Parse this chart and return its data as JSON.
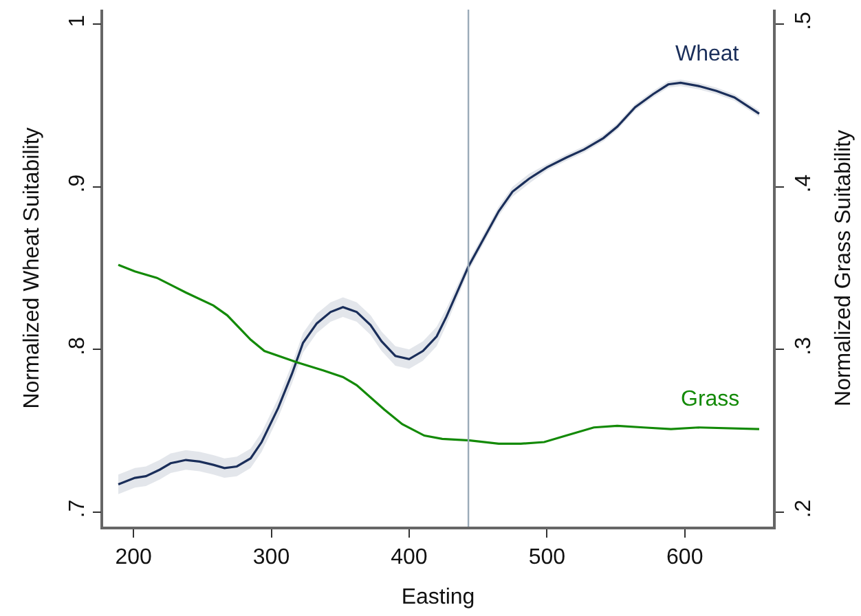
{
  "chart_data": {
    "type": "line",
    "xlabel": "Easting",
    "ylabel": "Normalized Wheat Suitability",
    "y2label": "Normalized Grass Suitability",
    "xlim": [
      178,
      664
    ],
    "xticks": [
      200,
      300,
      400,
      500,
      600
    ],
    "ylim": [
      0.691,
      1.009
    ],
    "yticks": [
      {
        "value": 0.7,
        "label": ".7"
      },
      {
        "value": 0.8,
        "label": ".8"
      },
      {
        "value": 0.9,
        "label": ".9"
      },
      {
        "value": 1,
        "label": "1"
      }
    ],
    "y2lim": [
      0.191,
      0.509
    ],
    "y2ticks": [
      {
        "value": 0.2,
        "label": ".2"
      },
      {
        "value": 0.3,
        "label": ".3"
      },
      {
        "value": 0.4,
        "label": ".4"
      },
      {
        "value": 0.5,
        "label": ".5"
      }
    ],
    "legend": false,
    "marker": "none",
    "line_style": "solid",
    "ref_lines": [
      {
        "axis": "x",
        "value": 443,
        "color": "#9aaab8"
      }
    ],
    "series": [
      {
        "name": "Wheat",
        "color": "#1a2e5a",
        "x": [
          189,
          201,
          209,
          219,
          227,
          238,
          248,
          258,
          266,
          275,
          285,
          293,
          305,
          315,
          323,
          333,
          343,
          352,
          362,
          372,
          380,
          390,
          400,
          410,
          420,
          427,
          443,
          454,
          465,
          475,
          487,
          500,
          514,
          527,
          541,
          551,
          564,
          577,
          588,
          597,
          610,
          623,
          636,
          654
        ],
        "values": [
          0.717,
          0.721,
          0.722,
          0.726,
          0.73,
          0.732,
          0.731,
          0.729,
          0.727,
          0.728,
          0.733,
          0.743,
          0.764,
          0.785,
          0.804,
          0.816,
          0.823,
          0.826,
          0.823,
          0.815,
          0.805,
          0.796,
          0.794,
          0.799,
          0.808,
          0.82,
          0.851,
          0.868,
          0.885,
          0.897,
          0.905,
          0.912,
          0.918,
          0.923,
          0.93,
          0.937,
          0.949,
          0.957,
          0.963,
          0.964,
          0.962,
          0.959,
          0.955,
          0.945
        ],
        "lower": [
          0.711,
          0.715,
          0.716,
          0.72,
          0.724,
          0.726,
          0.725,
          0.723,
          0.721,
          0.722,
          0.727,
          0.737,
          0.758,
          0.779,
          0.798,
          0.81,
          0.817,
          0.82,
          0.817,
          0.809,
          0.799,
          0.79,
          0.788,
          0.793,
          0.802,
          0.815,
          0.848,
          0.865,
          0.882,
          0.894,
          0.902,
          0.91,
          0.916,
          0.921,
          0.928,
          0.935,
          0.947,
          0.955,
          0.961,
          0.962,
          0.96,
          0.957,
          0.953,
          0.943
        ],
        "upper": [
          0.723,
          0.727,
          0.728,
          0.732,
          0.736,
          0.738,
          0.737,
          0.735,
          0.733,
          0.734,
          0.739,
          0.749,
          0.77,
          0.791,
          0.81,
          0.822,
          0.829,
          0.832,
          0.829,
          0.821,
          0.811,
          0.802,
          0.8,
          0.805,
          0.814,
          0.825,
          0.854,
          0.871,
          0.888,
          0.9,
          0.908,
          0.914,
          0.92,
          0.925,
          0.932,
          0.939,
          0.951,
          0.959,
          0.965,
          0.966,
          0.964,
          0.961,
          0.957,
          0.947
        ]
      },
      {
        "name": "Grass",
        "color": "#138a07",
        "axis": "y2",
        "x": [
          189,
          201,
          217,
          238,
          258,
          268,
          285,
          295,
          319,
          338,
          352,
          362,
          382,
          395,
          411,
          424,
          444,
          465,
          481,
          498,
          514,
          534,
          551,
          570,
          590,
          610,
          654
        ],
        "values": [
          0.352,
          0.348,
          0.344,
          0.335,
          0.327,
          0.321,
          0.306,
          0.299,
          0.292,
          0.287,
          0.283,
          0.278,
          0.263,
          0.254,
          0.247,
          0.245,
          0.244,
          0.242,
          0.242,
          0.243,
          0.247,
          0.252,
          0.253,
          0.252,
          0.251,
          0.252,
          0.251
        ]
      }
    ]
  }
}
